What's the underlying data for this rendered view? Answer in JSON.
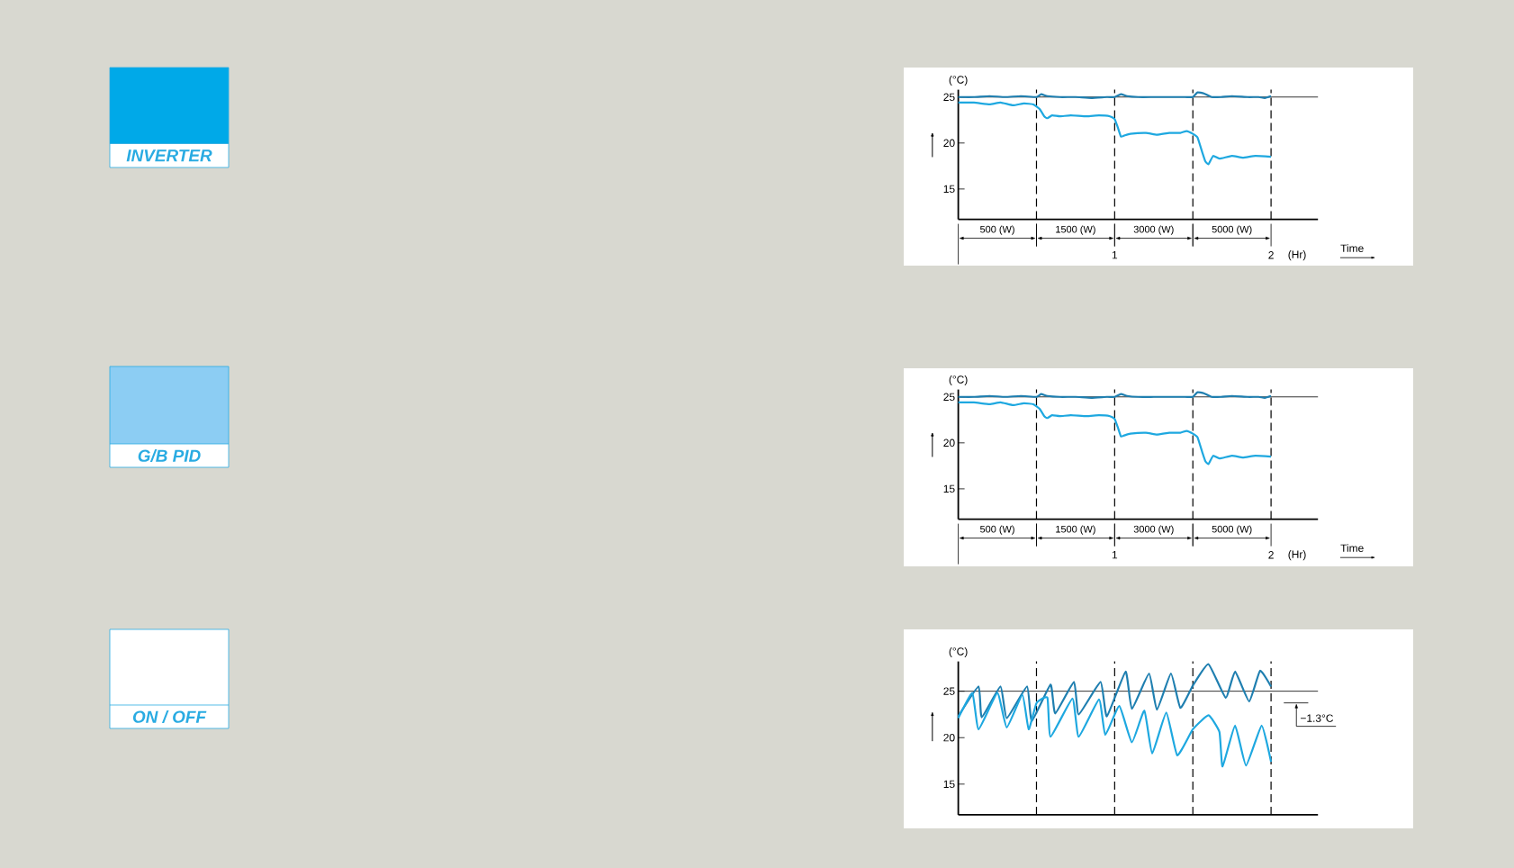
{
  "chart_data": [
    {
      "type": "other",
      "title": "INVERTER"
    },
    {
      "type": "line",
      "xlabel": "(Hr)",
      "ylabel": "(°C)",
      "xlim": [
        0,
        2.3
      ],
      "ylim": [
        11.7,
        25.8
      ],
      "xticks": [
        1,
        2
      ],
      "yticks": [
        15,
        20,
        25
      ],
      "marker": "none",
      "series": [
        {
          "color": "#1f7fb0",
          "x": [
            0,
            0.1,
            0.2,
            0.3,
            0.4,
            0.5,
            0.53,
            0.57,
            0.65,
            0.75,
            0.85,
            0.95,
            1.0,
            1.04,
            1.08,
            1.15,
            1.25,
            1.35,
            1.45,
            1.5,
            1.53,
            1.57,
            1.62,
            1.68,
            1.75,
            1.85,
            1.92,
            1.96,
            2.0
          ],
          "values": [
            25.0,
            25.0,
            25.1,
            25.0,
            25.1,
            25.0,
            25.3,
            25.1,
            25.0,
            25.0,
            24.9,
            25.0,
            25.0,
            25.3,
            25.1,
            25.0,
            25.0,
            25.0,
            25.0,
            25.0,
            25.5,
            25.4,
            25.0,
            25.0,
            25.1,
            25.0,
            25.0,
            24.9,
            25.1
          ]
        },
        {
          "color": "#1ea8e0",
          "x": [
            0,
            0.1,
            0.2,
            0.27,
            0.35,
            0.42,
            0.48,
            0.52,
            0.55,
            0.57,
            0.6,
            0.65,
            0.72,
            0.82,
            0.9,
            0.97,
            1.0,
            1.02,
            1.04,
            1.06,
            1.1,
            1.2,
            1.27,
            1.35,
            1.42,
            1.46,
            1.5,
            1.53,
            1.56,
            1.58,
            1.6,
            1.63,
            1.67,
            1.75,
            1.82,
            1.9,
            2.0
          ],
          "values": [
            24.4,
            24.4,
            24.2,
            24.4,
            24.1,
            24.3,
            24.2,
            23.7,
            22.9,
            22.7,
            23.0,
            22.9,
            23.0,
            22.9,
            23.0,
            22.9,
            22.6,
            21.7,
            20.7,
            20.8,
            21.0,
            21.1,
            20.9,
            21.1,
            21.1,
            21.3,
            21.0,
            20.6,
            19.0,
            18.0,
            17.7,
            18.6,
            18.3,
            18.6,
            18.4,
            18.6,
            18.5
          ]
        }
      ],
      "ref_lines": [
        {
          "axis": "y",
          "value": 25
        },
        {
          "axis": "x",
          "value": 0.5,
          "line_style": "dashed"
        },
        {
          "axis": "x",
          "value": 1,
          "line_style": "dashed"
        },
        {
          "axis": "x",
          "value": 1.5,
          "line_style": "dashed"
        },
        {
          "axis": "x",
          "value": 2,
          "line_style": "dashed"
        }
      ],
      "annotations": [
        "500 (W)",
        "1500 (W)",
        "3000 (W)",
        "5000 (W)",
        "Time"
      ]
    },
    {
      "type": "other",
      "title": "G/B PID"
    },
    {
      "type": "line",
      "xlabel": "(Hr)",
      "ylabel": "(°C)",
      "xlim": [
        0,
        2.3
      ],
      "ylim": [
        11.7,
        25.8
      ],
      "xticks": [
        1,
        2
      ],
      "yticks": [
        15,
        20,
        25
      ],
      "marker": "none",
      "series": [
        {
          "color": "#1f7fb0",
          "x": [
            0,
            0.1,
            0.2,
            0.3,
            0.4,
            0.5,
            0.53,
            0.57,
            0.65,
            0.75,
            0.85,
            0.95,
            1.0,
            1.04,
            1.08,
            1.15,
            1.25,
            1.35,
            1.45,
            1.5,
            1.53,
            1.57,
            1.62,
            1.68,
            1.75,
            1.85,
            1.92,
            1.96,
            2.0
          ],
          "values": [
            25.0,
            25.0,
            25.1,
            25.0,
            25.1,
            25.0,
            25.3,
            25.1,
            25.0,
            25.0,
            24.9,
            25.0,
            25.0,
            25.3,
            25.1,
            25.0,
            25.0,
            25.0,
            25.0,
            25.0,
            25.5,
            25.4,
            25.0,
            25.0,
            25.1,
            25.0,
            25.0,
            24.9,
            25.1
          ]
        },
        {
          "color": "#1ea8e0",
          "x": [
            0,
            0.1,
            0.2,
            0.27,
            0.35,
            0.42,
            0.48,
            0.52,
            0.55,
            0.57,
            0.6,
            0.65,
            0.72,
            0.82,
            0.9,
            0.97,
            1.0,
            1.02,
            1.04,
            1.06,
            1.1,
            1.2,
            1.27,
            1.35,
            1.42,
            1.46,
            1.5,
            1.53,
            1.56,
            1.58,
            1.6,
            1.63,
            1.67,
            1.75,
            1.82,
            1.9,
            2.0
          ],
          "values": [
            24.4,
            24.4,
            24.2,
            24.4,
            24.1,
            24.3,
            24.2,
            23.7,
            22.9,
            22.7,
            23.0,
            22.9,
            23.0,
            22.9,
            23.0,
            22.9,
            22.6,
            21.7,
            20.7,
            20.8,
            21.0,
            21.1,
            20.9,
            21.1,
            21.1,
            21.3,
            21.0,
            20.6,
            19.0,
            18.0,
            17.7,
            18.6,
            18.3,
            18.6,
            18.4,
            18.6,
            18.5
          ]
        }
      ],
      "ref_lines": [
        {
          "axis": "y",
          "value": 25
        },
        {
          "axis": "x",
          "value": 0.5,
          "line_style": "dashed"
        },
        {
          "axis": "x",
          "value": 1,
          "line_style": "dashed"
        },
        {
          "axis": "x",
          "value": 1.5,
          "line_style": "dashed"
        },
        {
          "axis": "x",
          "value": 2,
          "line_style": "dashed"
        }
      ],
      "annotations": [
        "500 (W)",
        "1500 (W)",
        "3000 (W)",
        "5000 (W)",
        "Time"
      ]
    },
    {
      "type": "other",
      "title": "ON / OFF"
    },
    {
      "type": "line",
      "ylabel": "(°C)",
      "xlim": [
        0,
        2.3
      ],
      "ylim": [
        11.7,
        28.2
      ],
      "yticks": [
        15,
        20,
        25
      ],
      "marker": "none",
      "tick_labels": "y",
      "series": [
        {
          "color": "#1f7fb0",
          "x": [
            0,
            0.13,
            0.15,
            0.27,
            0.31,
            0.44,
            0.47,
            0.59,
            0.62,
            0.74,
            0.77,
            0.91,
            0.95,
            1.07,
            1.11,
            1.22,
            1.27,
            1.36,
            1.42,
            1.5,
            1.6,
            1.71,
            1.77,
            1.86,
            1.93,
            2.0
          ],
          "values": [
            22.3,
            25.5,
            22.2,
            25.5,
            22.1,
            25.5,
            21.8,
            25.7,
            22.6,
            26.0,
            22.5,
            26.0,
            22.3,
            27.1,
            23.1,
            26.9,
            23.0,
            26.9,
            23.2,
            25.6,
            27.9,
            24.3,
            27.1,
            23.9,
            27.2,
            25.5
          ]
        },
        {
          "color": "#1ea8e0",
          "x": [
            0,
            0.09,
            0.13,
            0.25,
            0.31,
            0.41,
            0.45,
            0.5,
            0.57,
            0.59,
            0.73,
            0.77,
            0.9,
            0.94,
            1.03,
            1.11,
            1.19,
            1.24,
            1.33,
            1.4,
            1.5,
            1.6,
            1.67,
            1.69,
            1.77,
            1.84,
            1.94,
            2.0
          ],
          "values": [
            22.1,
            24.8,
            20.9,
            24.8,
            21.1,
            24.6,
            20.9,
            23.7,
            24.3,
            20.1,
            24.2,
            20.1,
            24.1,
            20.3,
            23.4,
            19.5,
            22.9,
            18.3,
            22.7,
            18.1,
            20.9,
            22.4,
            20.6,
            16.9,
            21.3,
            17.0,
            21.3,
            17.4
          ]
        }
      ],
      "ref_lines": [
        {
          "axis": "y",
          "value": 25
        },
        {
          "axis": "x",
          "value": 0.5,
          "line_style": "dashed"
        },
        {
          "axis": "x",
          "value": 1,
          "line_style": "dashed"
        },
        {
          "axis": "x",
          "value": 1.5,
          "line_style": "dashed"
        },
        {
          "axis": "x",
          "value": 2,
          "line_style": "dashed"
        }
      ],
      "annotations": [
        "−1.3°C"
      ]
    }
  ]
}
